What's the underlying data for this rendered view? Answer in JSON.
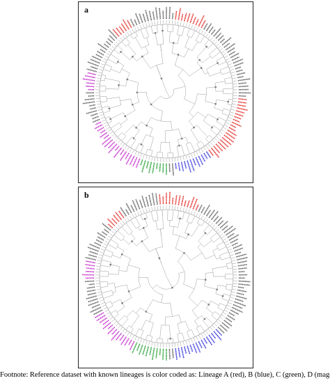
{
  "figure": {
    "panels": [
      {
        "id": "a",
        "label": "a"
      },
      {
        "id": "b",
        "label": "b"
      }
    ],
    "footnote": "Footnote: Reference dataset with known lineages is color coded as: Lineage A (red), B (blue), C (green), D (magenta)",
    "colors": {
      "lineage_a": "#e0201b",
      "lineage_b": "#2a2ad8",
      "lineage_c": "#1a9a2a",
      "lineage_d": "#c020c8",
      "unassigned": "#555555",
      "branch": "#9a9a9a",
      "node": "#777777"
    }
  }
}
